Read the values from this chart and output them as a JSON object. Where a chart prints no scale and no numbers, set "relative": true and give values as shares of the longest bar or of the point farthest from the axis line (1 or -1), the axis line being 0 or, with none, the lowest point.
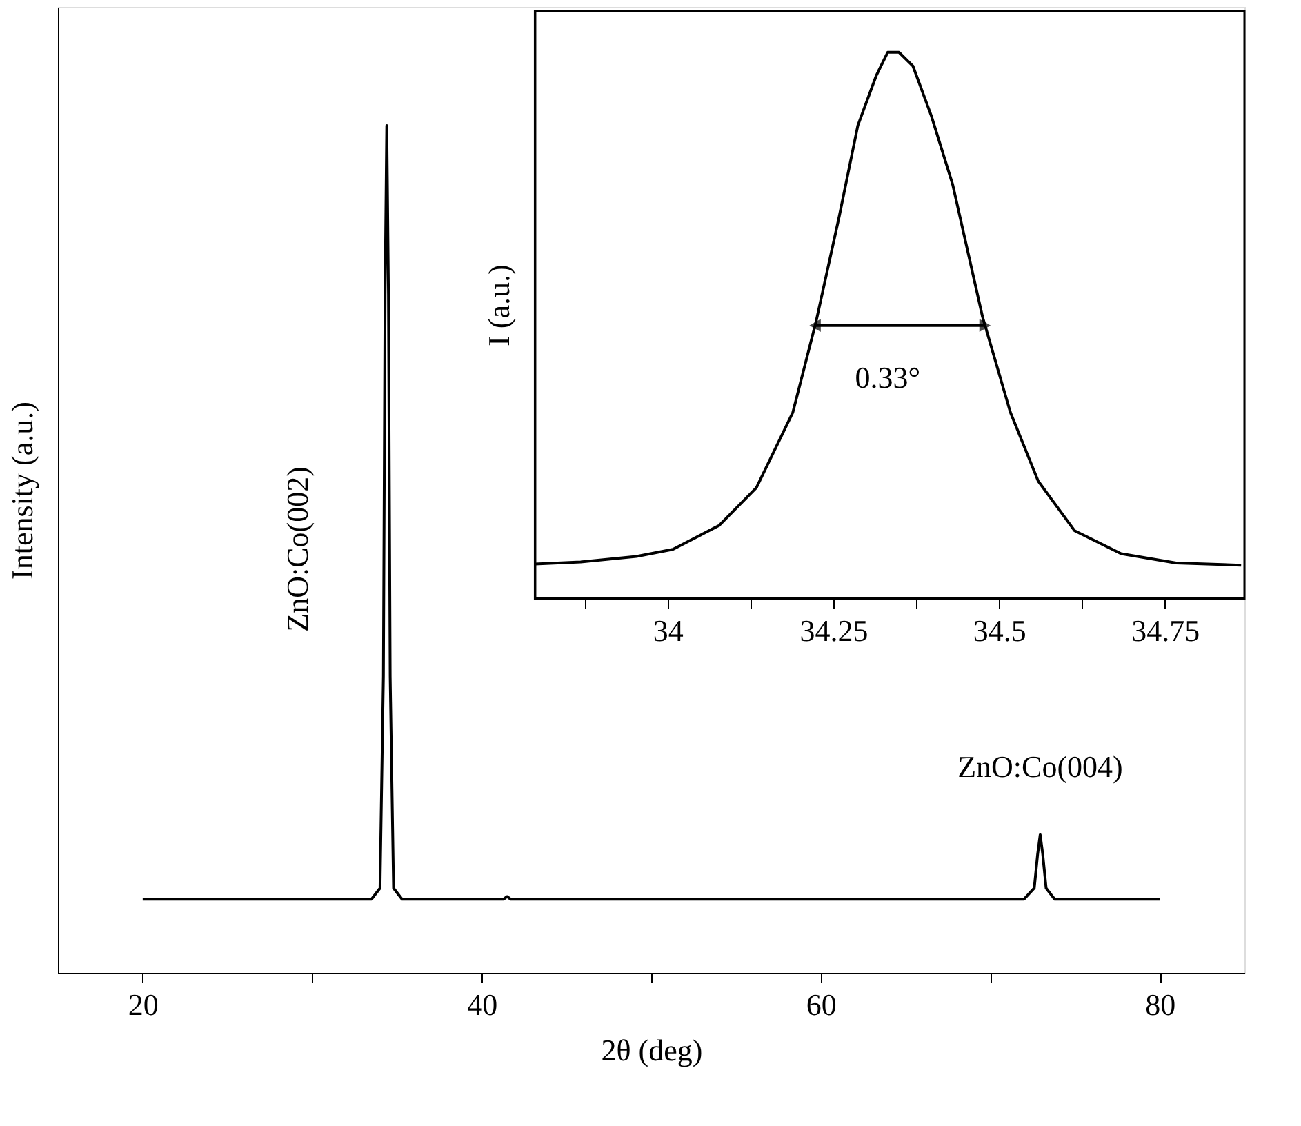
{
  "chart_data": [
    {
      "type": "line",
      "xlabel": "2θ (deg)",
      "ylabel": "Intensity (a.u.)",
      "relative": true,
      "xlim": [
        15,
        85
      ],
      "xticks": [
        20,
        {
          "value": 30,
          "label": null
        },
        40,
        {
          "value": 50,
          "label": null
        },
        60,
        {
          "value": 70,
          "label": null
        },
        80
      ],
      "grid": false,
      "series": [
        {
          "color": "#000000",
          "x": [
            20,
            33.5,
            34.0,
            34.2,
            34.3,
            34.4,
            34.5,
            34.6,
            34.8,
            35.3,
            41.3,
            41.5,
            41.7,
            72.0,
            72.6,
            72.8,
            72.95,
            73.1,
            73.3,
            73.8,
            80
          ],
          "values": [
            0.087,
            0.087,
            0.1,
            0.35,
            0.8,
            1.0,
            0.8,
            0.35,
            0.1,
            0.087,
            0.087,
            0.09,
            0.087,
            0.087,
            0.1,
            0.14,
            0.163,
            0.14,
            0.1,
            0.087,
            0.087
          ]
        }
      ],
      "annotations": [
        "ZnO:Co(002)",
        "ZnO:Co(004)"
      ]
    },
    {
      "type": "line",
      "ylabel": "I (a.u.)",
      "relative": true,
      "xlim": [
        33.8,
        34.87
      ],
      "xticks": [
        {
          "value": 33.875,
          "label": null
        },
        34,
        {
          "value": 34.125,
          "label": null
        },
        34.25,
        {
          "value": 34.375,
          "label": null
        },
        34.5,
        {
          "value": 34.625,
          "label": null
        },
        34.75
      ],
      "grid": false,
      "series": [
        {
          "color": "#000000",
          "x": [
            33.8,
            33.869,
            33.953,
            34.008,
            34.078,
            34.134,
            34.189,
            34.224,
            34.259,
            34.287,
            34.315,
            34.332,
            34.349,
            34.37,
            34.398,
            34.43,
            34.475,
            34.517,
            34.559,
            34.614,
            34.684,
            34.767,
            34.865
          ],
          "values": [
            0.063,
            0.067,
            0.077,
            0.09,
            0.134,
            0.203,
            0.341,
            0.507,
            0.7,
            0.866,
            0.958,
            1.0,
            1.0,
            0.975,
            0.883,
            0.758,
            0.516,
            0.341,
            0.215,
            0.124,
            0.082,
            0.065,
            0.061
          ]
        }
      ],
      "annotations": [
        "0.33°"
      ]
    }
  ]
}
